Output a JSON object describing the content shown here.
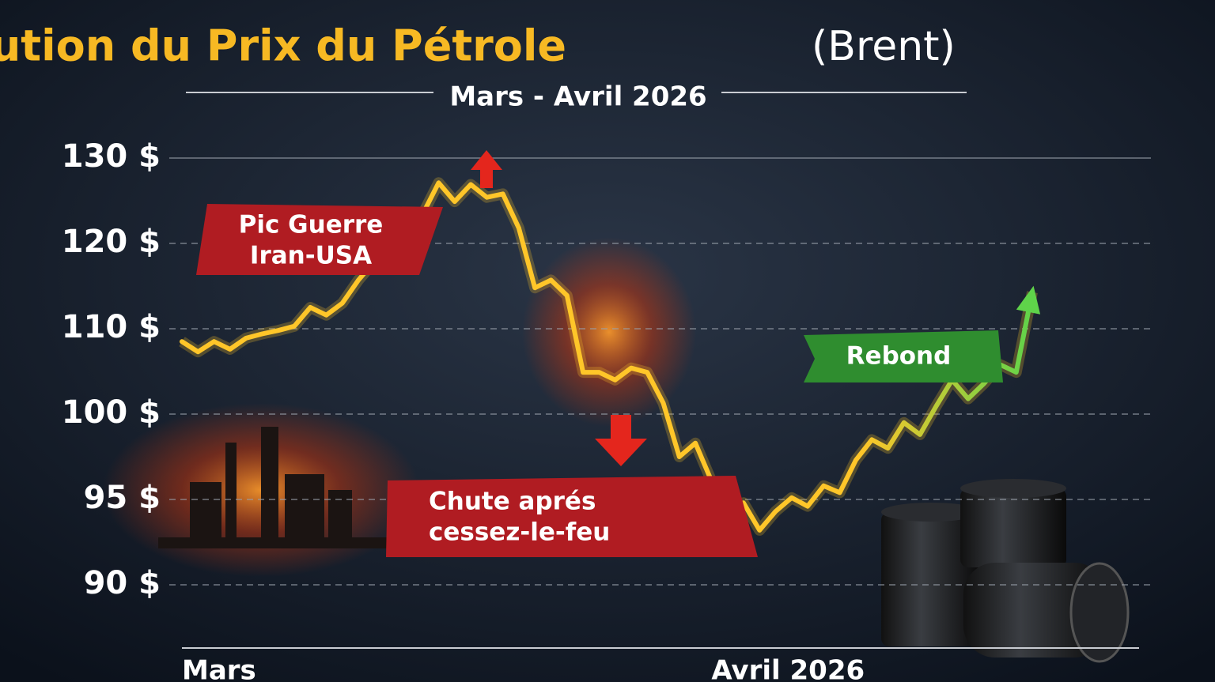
{
  "chart_data": {
    "type": "line",
    "title": "Évolution du Prix du Pétrole",
    "title_suffix": "(Brent)",
    "subtitle": "Mars - Avril 2026",
    "categories": [
      "Mars",
      null,
      null,
      null,
      null,
      null,
      null,
      null,
      null,
      null,
      null,
      null,
      null,
      null,
      null,
      null,
      null,
      null,
      null,
      null,
      null,
      null,
      null,
      null,
      null,
      null,
      null,
      null,
      null,
      null,
      null,
      null,
      null,
      "Avril 2026",
      null,
      null,
      null,
      null,
      null,
      null,
      null,
      null,
      null,
      null,
      null,
      null,
      null,
      null,
      null,
      null,
      null,
      null,
      null,
      null
    ],
    "series": [
      {
        "name": "Brent",
        "color": "#ffc629",
        "end_color": "#5fd34a",
        "values": [
          108.5,
          107.3,
          108.5,
          107.6,
          108.9,
          109.4,
          109.8,
          110.3,
          112.5,
          111.6,
          113,
          115.7,
          117.9,
          119.7,
          123,
          123.4,
          127.1,
          124.9,
          126.9,
          125.4,
          125.8,
          121.8,
          114.8,
          115.7,
          113.9,
          104.9,
          104.9,
          104,
          105.4,
          104.9,
          101.3,
          97.5,
          98.3,
          96.1,
          94.6,
          94.8,
          93.2,
          94.3,
          95.1,
          94.6,
          95.8,
          95.4,
          97.3,
          98.5,
          98,
          99.5,
          98.8,
          100.9,
          104,
          101.8,
          103.6,
          105.8,
          104.9,
          114.3
        ]
      }
    ],
    "ylim": [
      88,
      132
    ],
    "yscale": "tick-interpolated",
    "yticks": [
      {
        "value": 130,
        "label": "130 $"
      },
      {
        "value": 120,
        "label": "120 $"
      },
      {
        "value": 110,
        "label": "110 $"
      },
      {
        "value": 100,
        "label": "100 $"
      },
      {
        "value": 95,
        "label": "95 $"
      },
      {
        "value": 90,
        "label": "90 $"
      }
    ],
    "grid": true,
    "annotations": [
      {
        "lines": [
          "Pic Guerre",
          "Iran-USA"
        ]
      },
      {
        "lines": [
          "Chute aprés",
          "cessez-le-feu"
        ]
      },
      {
        "lines": [
          "Rebond"
        ]
      }
    ]
  }
}
